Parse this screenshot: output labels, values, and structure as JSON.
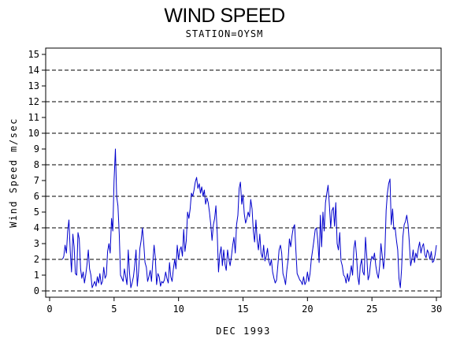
{
  "chart_data": {
    "type": "line",
    "title": "WIND SPEED",
    "subtitle": "STATION=OYSM",
    "xlabel": "DEC 1993",
    "ylabel": "Wind Speed m/sec",
    "xlim": [
      0,
      30
    ],
    "ylim": [
      0,
      15.5
    ],
    "x_ticks": [
      0,
      5,
      10,
      15,
      20,
      25,
      30
    ],
    "y_ticks": [
      0,
      1,
      2,
      3,
      4,
      5,
      6,
      7,
      8,
      9,
      10,
      11,
      12,
      13,
      14,
      15
    ],
    "reference_lines": [
      0,
      2,
      4,
      6,
      8,
      10,
      12,
      14
    ],
    "grid": "dashed horizontal at even values",
    "series_color": "#0000cc",
    "series": [
      {
        "x": [
          1.0,
          1.1,
          1.2,
          1.3,
          1.4,
          1.5,
          1.6,
          1.7,
          1.8,
          1.9,
          2.0,
          2.1,
          2.2,
          2.3,
          2.4,
          2.5,
          2.6,
          2.7,
          2.8,
          2.9,
          3.0,
          3.1,
          3.2,
          3.3,
          3.4,
          3.5,
          3.6,
          3.7,
          3.8,
          3.9,
          4.0,
          4.1,
          4.2,
          4.3,
          4.4,
          4.5,
          4.6,
          4.7,
          4.8,
          4.9,
          5.0,
          5.1,
          5.2,
          5.3,
          5.4,
          5.5,
          5.6,
          5.7,
          5.8,
          5.9,
          6.0,
          6.1,
          6.2,
          6.3,
          6.4,
          6.5,
          6.6,
          6.7,
          6.8,
          6.9,
          7.0,
          7.1,
          7.2,
          7.3,
          7.4,
          7.5,
          7.6,
          7.7,
          7.8,
          7.9,
          8.0,
          8.1,
          8.2,
          8.3,
          8.4,
          8.5,
          8.6,
          8.7,
          8.8,
          8.9,
          9.0,
          9.1,
          9.2,
          9.3,
          9.4,
          9.5,
          9.6,
          9.7,
          9.8,
          9.9,
          10.0,
          10.1,
          10.2,
          10.3,
          10.4,
          10.5,
          10.6,
          10.7,
          10.8,
          10.9,
          11.0,
          11.1,
          11.2,
          11.3,
          11.4,
          11.5,
          11.6,
          11.7,
          11.8,
          11.9,
          12.0,
          12.1,
          12.2,
          12.3,
          12.4,
          12.5,
          12.6,
          12.7,
          12.8,
          12.9,
          13.0,
          13.1,
          13.2,
          13.3,
          13.4,
          13.5,
          13.6,
          13.7,
          13.8,
          13.9,
          14.0,
          14.1,
          14.2,
          14.3,
          14.4,
          14.5,
          14.6,
          14.7,
          14.8,
          14.9,
          15.0,
          15.1,
          15.2,
          15.3,
          15.4,
          15.5,
          15.6,
          15.7,
          15.8,
          15.9,
          16.0,
          16.1,
          16.2,
          16.3,
          16.4,
          16.5,
          16.6,
          16.7,
          16.8,
          16.9,
          17.0,
          17.1,
          17.2,
          17.3,
          17.4,
          17.5,
          17.6,
          17.7,
          17.8,
          17.9,
          18.0,
          18.1,
          18.2,
          18.3,
          18.4,
          18.5,
          18.6,
          18.7,
          18.8,
          18.9,
          19.0,
          19.1,
          19.2,
          19.3,
          19.4,
          19.5,
          19.6,
          19.7,
          19.8,
          19.9,
          20.0,
          20.1,
          20.2,
          20.3,
          20.4,
          20.5,
          20.6,
          20.7,
          20.8,
          20.9,
          21.0,
          21.1,
          21.2,
          21.3,
          21.4,
          21.5,
          21.6,
          21.7,
          21.8,
          21.9,
          22.0,
          22.1,
          22.2,
          22.3,
          22.4,
          22.5,
          22.6,
          22.7,
          22.8,
          22.9,
          23.0,
          23.1,
          23.2,
          23.3,
          23.4,
          23.5,
          23.6,
          23.7,
          23.8,
          23.9,
          24.0,
          24.1,
          24.2,
          24.3,
          24.4,
          24.5,
          24.6,
          24.7,
          24.8,
          24.9,
          25.0,
          25.1,
          25.2,
          25.3,
          25.4,
          25.5,
          25.6,
          25.7,
          25.8,
          25.9,
          26.0,
          26.1,
          26.2,
          26.3,
          26.4,
          26.5,
          26.6,
          26.7,
          26.8,
          26.9,
          27.0,
          27.1,
          27.2,
          27.3,
          27.4,
          27.5,
          27.6,
          27.7,
          27.8,
          27.9,
          28.0,
          28.1,
          28.2,
          28.3,
          28.4,
          28.5,
          28.6,
          28.7,
          28.8,
          28.9,
          29.0,
          29.1,
          29.2,
          29.3,
          29.4,
          29.5,
          29.6,
          29.7,
          29.8,
          29.9,
          30.0
        ],
        "y": [
          2.0,
          2.2,
          2.9,
          2.4,
          3.8,
          4.5,
          2.5,
          1.2,
          3.6,
          2.8,
          1.1,
          1.0,
          3.7,
          3.3,
          1.4,
          0.8,
          1.2,
          0.5,
          1.0,
          1.7,
          2.6,
          1.4,
          1.0,
          0.2,
          0.4,
          0.6,
          0.3,
          0.9,
          0.5,
          1.1,
          0.4,
          0.6,
          1.5,
          0.8,
          1.0,
          2.5,
          3.0,
          2.4,
          4.6,
          3.8,
          7.0,
          9.0,
          6.0,
          5.4,
          3.6,
          1.0,
          0.8,
          0.6,
          1.4,
          0.9,
          0.4,
          2.6,
          1.1,
          0.2,
          0.5,
          0.9,
          1.6,
          2.6,
          0.3,
          1.2,
          2.7,
          3.2,
          4.0,
          3.0,
          1.8,
          1.5,
          0.6,
          0.9,
          1.3,
          0.6,
          1.8,
          2.9,
          2.1,
          0.4,
          1.1,
          0.9,
          0.3,
          0.6,
          0.5,
          0.7,
          1.2,
          0.8,
          0.5,
          1.8,
          0.9,
          0.6,
          1.4,
          2.0,
          1.4,
          2.9,
          2.0,
          2.6,
          2.8,
          2.2,
          3.9,
          2.5,
          3.2,
          5.0,
          4.6,
          5.2,
          6.2,
          6.0,
          6.4,
          6.9,
          7.2,
          6.5,
          6.8,
          6.2,
          6.6,
          6.0,
          6.4,
          5.5,
          5.9,
          5.6,
          5.0,
          4.2,
          3.2,
          4.2,
          4.6,
          5.4,
          3.6,
          1.2,
          2.3,
          2.8,
          1.6,
          2.6,
          1.7,
          1.3,
          2.6,
          2.0,
          1.6,
          2.2,
          2.9,
          3.4,
          2.4,
          4.2,
          4.8,
          6.5,
          6.9,
          5.5,
          6.1,
          4.9,
          4.3,
          4.6,
          5.0,
          4.7,
          5.8,
          5.2,
          3.8,
          3.1,
          4.5,
          3.2,
          2.6,
          3.6,
          2.4,
          2.1,
          2.9,
          1.9,
          2.2,
          2.7,
          1.9,
          1.6,
          2.0,
          1.2,
          0.8,
          0.5,
          0.7,
          1.6,
          2.6,
          2.9,
          2.4,
          1.1,
          0.8,
          0.4,
          1.3,
          2.0,
          3.3,
          2.8,
          3.5,
          4.0,
          4.2,
          2.6,
          1.1,
          0.9,
          0.7,
          0.6,
          0.4,
          0.9,
          0.4,
          0.6,
          1.2,
          0.6,
          1.1,
          2.0,
          2.6,
          3.2,
          3.9,
          4.0,
          3.2,
          1.8,
          4.8,
          2.8,
          5.0,
          3.8,
          5.6,
          6.2,
          6.7,
          5.4,
          4.0,
          5.1,
          5.3,
          4.1,
          5.6,
          3.0,
          2.6,
          3.7,
          1.9,
          1.6,
          1.0,
          0.9,
          0.5,
          1.1,
          0.6,
          1.0,
          1.6,
          1.0,
          2.7,
          3.2,
          2.3,
          0.9,
          0.4,
          1.6,
          2.0,
          1.2,
          1.0,
          3.4,
          2.2,
          0.7,
          1.0,
          1.8,
          2.2,
          2.0,
          2.4,
          1.6,
          1.1,
          0.8,
          1.6,
          3.0,
          2.2,
          1.4,
          2.3,
          5.1,
          6.2,
          6.8,
          7.1,
          4.2,
          5.2,
          3.9,
          4.0,
          3.2,
          2.6,
          0.8,
          0.2,
          1.4,
          3.4,
          4.2,
          4.4,
          4.8,
          4.2,
          3.1,
          1.6,
          2.0,
          2.6,
          1.8,
          2.4,
          2.1,
          2.7,
          3.1,
          2.4,
          2.8,
          3.0,
          2.3,
          2.1,
          2.6,
          2.4,
          2.0,
          2.5,
          1.8,
          1.9,
          2.3,
          2.9
        ]
      }
    ]
  }
}
